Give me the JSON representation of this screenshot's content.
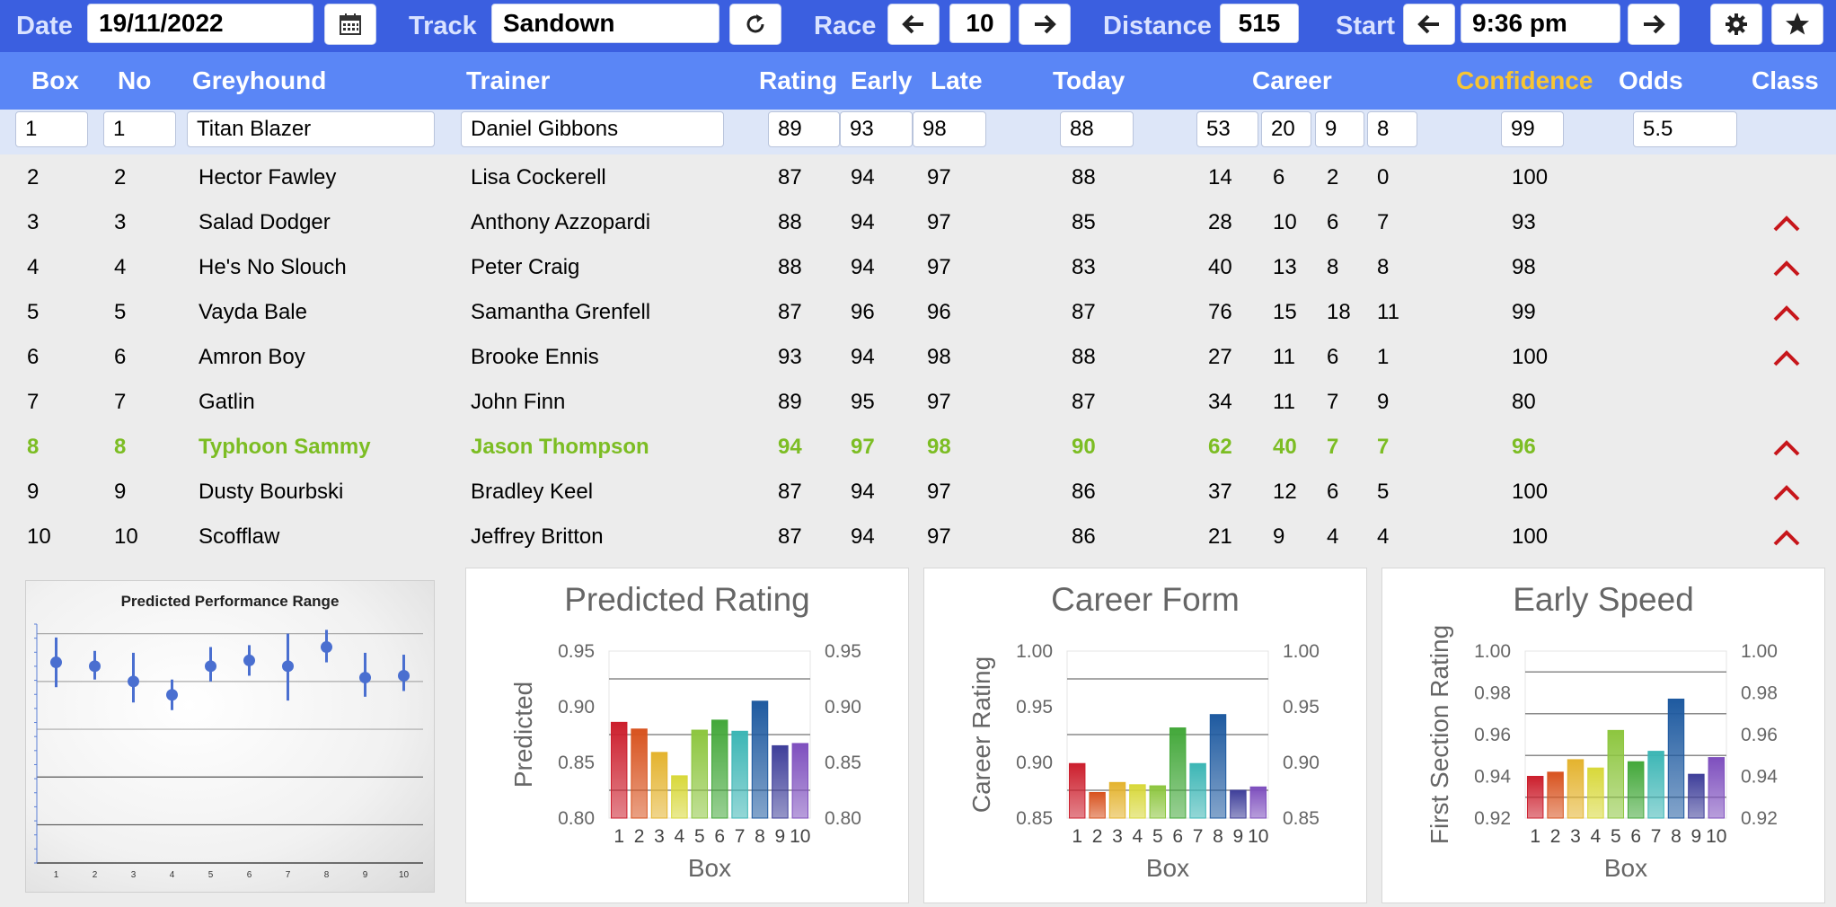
{
  "toolbar": {
    "date_label": "Date",
    "date_value": "19/11/2022",
    "track_label": "Track",
    "track_value": "Sandown",
    "race_label": "Race",
    "race_value": "10",
    "distance_label": "Distance",
    "distance_value": "515",
    "start_label": "Start",
    "start_value": "9:36 pm",
    "icons": [
      "calendar-icon",
      "refresh-icon",
      "arrow-left-icon",
      "arrow-right-icon",
      "gear-icon",
      "star-icon"
    ]
  },
  "columns": {
    "box": "Box",
    "no": "No",
    "greyhound": "Greyhound",
    "trainer": "Trainer",
    "rating": "Rating",
    "early": "Early",
    "late": "Late",
    "today": "Today",
    "career": "Career",
    "confidence": "Confidence",
    "odds": "Odds",
    "class": "Class"
  },
  "colors": {
    "toolbar": "#3b5fe0",
    "header": "#5a86f6",
    "confidence_header": "#f7c533",
    "highlight": "#7cbd23",
    "caret": "#c7161b",
    "edit_row": "#dde6f8"
  },
  "edit_row": {
    "box": "1",
    "no": "1",
    "greyhound": "Titan Blazer",
    "trainer": "Daniel Gibbons",
    "rating": "89",
    "early": "93",
    "late": "98",
    "today": "88",
    "career": [
      "53",
      "20",
      "9",
      "8"
    ],
    "confidence": "99",
    "odds": "5.5"
  },
  "rows": [
    {
      "box": "2",
      "no": "2",
      "greyhound": "Hector Fawley",
      "trainer": "Lisa Cockerell",
      "rating": "87",
      "early": "94",
      "late": "97",
      "today": "88",
      "career": [
        "14",
        "6",
        "2",
        "0"
      ],
      "confidence": "100",
      "class_up": false,
      "highlight": false
    },
    {
      "box": "3",
      "no": "3",
      "greyhound": "Salad Dodger",
      "trainer": "Anthony Azzopardi",
      "rating": "88",
      "early": "94",
      "late": "97",
      "today": "85",
      "career": [
        "28",
        "10",
        "6",
        "7"
      ],
      "confidence": "93",
      "class_up": true,
      "highlight": false
    },
    {
      "box": "4",
      "no": "4",
      "greyhound": "He's No Slouch",
      "trainer": "Peter Craig",
      "rating": "88",
      "early": "94",
      "late": "97",
      "today": "83",
      "career": [
        "40",
        "13",
        "8",
        "8"
      ],
      "confidence": "98",
      "class_up": true,
      "highlight": false
    },
    {
      "box": "5",
      "no": "5",
      "greyhound": "Vayda Bale",
      "trainer": "Samantha Grenfell",
      "rating": "87",
      "early": "96",
      "late": "96",
      "today": "87",
      "career": [
        "76",
        "15",
        "18",
        "11"
      ],
      "confidence": "99",
      "class_up": true,
      "highlight": false
    },
    {
      "box": "6",
      "no": "6",
      "greyhound": "Amron Boy",
      "trainer": "Brooke Ennis",
      "rating": "93",
      "early": "94",
      "late": "98",
      "today": "88",
      "career": [
        "27",
        "11",
        "6",
        "1"
      ],
      "confidence": "100",
      "class_up": true,
      "highlight": false
    },
    {
      "box": "7",
      "no": "7",
      "greyhound": "Gatlin",
      "trainer": "John Finn",
      "rating": "89",
      "early": "95",
      "late": "97",
      "today": "87",
      "career": [
        "34",
        "11",
        "7",
        "9"
      ],
      "confidence": "80",
      "class_up": false,
      "highlight": false
    },
    {
      "box": "8",
      "no": "8",
      "greyhound": "Typhoon Sammy",
      "trainer": "Jason Thompson",
      "rating": "94",
      "early": "97",
      "late": "98",
      "today": "90",
      "career": [
        "62",
        "40",
        "7",
        "7"
      ],
      "confidence": "96",
      "class_up": true,
      "highlight": true
    },
    {
      "box": "9",
      "no": "9",
      "greyhound": "Dusty Bourbski",
      "trainer": "Bradley Keel",
      "rating": "87",
      "early": "94",
      "late": "97",
      "today": "86",
      "career": [
        "37",
        "12",
        "6",
        "5"
      ],
      "confidence": "100",
      "class_up": true,
      "highlight": false
    },
    {
      "box": "10",
      "no": "10",
      "greyhound": "Scofflaw",
      "trainer": "Jeffrey Britton",
      "rating": "87",
      "early": "94",
      "late": "97",
      "today": "86",
      "career": [
        "21",
        "9",
        "4",
        "4"
      ],
      "confidence": "100",
      "class_up": true,
      "highlight": false
    }
  ],
  "chart_data": [
    {
      "type": "scatter",
      "title": "Predicted Performance Range",
      "categories": [
        "1",
        "2",
        "3",
        "4",
        "5",
        "6",
        "7",
        "8",
        "9",
        "10"
      ],
      "values": [
        0.7,
        0.66,
        0.5,
        0.36,
        0.66,
        0.72,
        0.66,
        0.86,
        0.54,
        0.56
      ],
      "low": [
        0.44,
        0.52,
        0.28,
        0.2,
        0.5,
        0.56,
        0.3,
        0.7,
        0.34,
        0.4
      ],
      "high": [
        0.96,
        0.82,
        0.8,
        0.52,
        0.86,
        0.88,
        1.0,
        1.04,
        0.8,
        0.78
      ],
      "ylim": [
        -1.4,
        1.1
      ],
      "grid": true
    },
    {
      "type": "bar",
      "title": "Predicted Rating",
      "categories": [
        "1",
        "2",
        "3",
        "4",
        "5",
        "6",
        "7",
        "8",
        "9",
        "10"
      ],
      "values": [
        0.886,
        0.88,
        0.859,
        0.838,
        0.879,
        0.888,
        0.878,
        0.905,
        0.865,
        0.867
      ],
      "xlabel": "Box",
      "ylabel": "Predicted",
      "ylim": [
        0.8,
        0.95
      ],
      "yticks": [
        "0.95",
        "0.90",
        "0.85",
        "0.80"
      ],
      "ref_lines": [
        0.925,
        0.875,
        0.825
      ],
      "colors": [
        "#cc1f2d",
        "#d8531f",
        "#e4b32e",
        "#d8d83a",
        "#8dc63f",
        "#43a83a",
        "#3cb6b5",
        "#1e5aa0",
        "#3f3f9a",
        "#7e4fbe"
      ]
    },
    {
      "type": "bar",
      "title": "Career Form",
      "categories": [
        "1",
        "2",
        "3",
        "4",
        "5",
        "6",
        "7",
        "8",
        "9",
        "10"
      ],
      "values": [
        0.899,
        0.873,
        0.882,
        0.88,
        0.879,
        0.931,
        0.899,
        0.943,
        0.875,
        0.878
      ],
      "xlabel": "Box",
      "ylabel": "Career Rating",
      "ylim": [
        0.85,
        1.0
      ],
      "yticks": [
        "1.00",
        "0.95",
        "0.90",
        "0.85"
      ],
      "ref_lines": [
        0.975,
        0.925,
        0.875
      ],
      "colors": [
        "#cc1f2d",
        "#d8531f",
        "#e4b32e",
        "#d8d83a",
        "#8dc63f",
        "#43a83a",
        "#3cb6b5",
        "#1e5aa0",
        "#3f3f9a",
        "#7e4fbe"
      ]
    },
    {
      "type": "bar",
      "title": "Early Speed",
      "categories": [
        "1",
        "2",
        "3",
        "4",
        "5",
        "6",
        "7",
        "8",
        "9",
        "10"
      ],
      "values": [
        0.94,
        0.942,
        0.948,
        0.944,
        0.962,
        0.947,
        0.952,
        0.977,
        0.941,
        0.949
      ],
      "xlabel": "Box",
      "ylabel": "First Section Rating",
      "ylim": [
        0.92,
        1.0
      ],
      "yticks": [
        "1.00",
        "0.98",
        "0.96",
        "0.94",
        "0.92"
      ],
      "ref_lines": [
        0.99,
        0.97,
        0.95,
        0.93
      ],
      "colors": [
        "#cc1f2d",
        "#d8531f",
        "#e4b32e",
        "#d8d83a",
        "#8dc63f",
        "#43a83a",
        "#3cb6b5",
        "#1e5aa0",
        "#3f3f9a",
        "#7e4fbe"
      ]
    }
  ]
}
